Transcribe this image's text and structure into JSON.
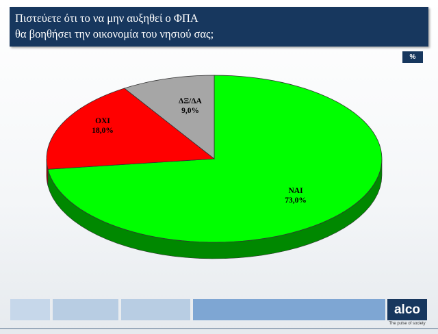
{
  "header": {
    "title_line1": "Πιστεύετε ότι το να μην αυξηθεί ο ΦΠΑ",
    "title_line2": "θα βοηθήσει την οικονομία του νησιού σας;"
  },
  "badge": {
    "unit": "%"
  },
  "brand": {
    "logo_text": "alco",
    "tagline": "The pulse of society"
  },
  "colors": {
    "header_bg": "#17375e",
    "yes": "#00ff00",
    "no": "#ff0000",
    "dk": "#a6a6a6"
  },
  "chart_data": {
    "type": "pie",
    "title": "",
    "slices": [
      {
        "name": "ΝΑΙ",
        "value": 73.0,
        "value_label": "73,0%",
        "color": "#00ff00",
        "side_color": "#008800"
      },
      {
        "name": "ΟΧΙ",
        "value": 18.0,
        "value_label": "18,0%",
        "color": "#ff0000",
        "side_color": "#a00000"
      },
      {
        "name": "ΔΞ/ΔΑ",
        "value": 9.0,
        "value_label": "9,0%",
        "color": "#a6a6a6",
        "side_color": "#6e6e6e"
      }
    ]
  }
}
